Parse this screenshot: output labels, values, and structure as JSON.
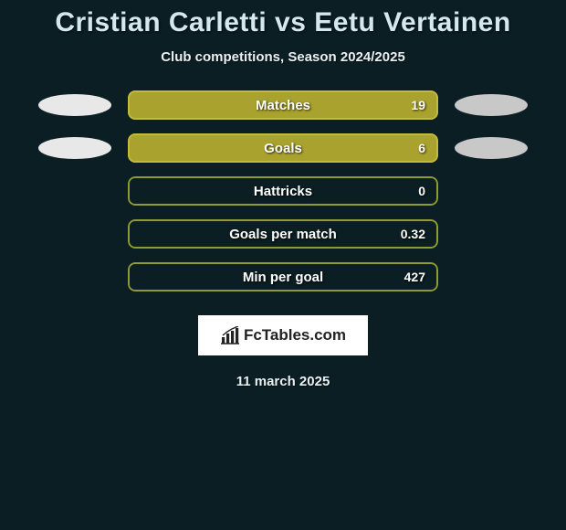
{
  "title": "Cristian Carletti vs Eetu Vertainen",
  "subtitle": "Club competitions, Season 2024/2025",
  "date": "11 march 2025",
  "logo_text": "FcTables.com",
  "background_color": "#0a1e23",
  "title_color": "#d4e8ed",
  "subtitle_color": "#e8f0f2",
  "stats": [
    {
      "label": "Matches",
      "value": "19",
      "fill_pct": 100,
      "fill_color": "#a9a22e",
      "border_color": "#c2ba3c",
      "show_ellipses": true
    },
    {
      "label": "Goals",
      "value": "6",
      "fill_pct": 100,
      "fill_color": "#a9a22e",
      "border_color": "#c2ba3c",
      "show_ellipses": true
    },
    {
      "label": "Hattricks",
      "value": "0",
      "fill_pct": 0,
      "fill_color": "#a9a22e",
      "border_color": "#8f9a30",
      "show_ellipses": false
    },
    {
      "label": "Goals per match",
      "value": "0.32",
      "fill_pct": 0,
      "fill_color": "#a9a22e",
      "border_color": "#8f9a30",
      "show_ellipses": false
    },
    {
      "label": "Min per goal",
      "value": "427",
      "fill_pct": 0,
      "fill_color": "#a9a22e",
      "border_color": "#8f9a30",
      "show_ellipses": false
    }
  ]
}
